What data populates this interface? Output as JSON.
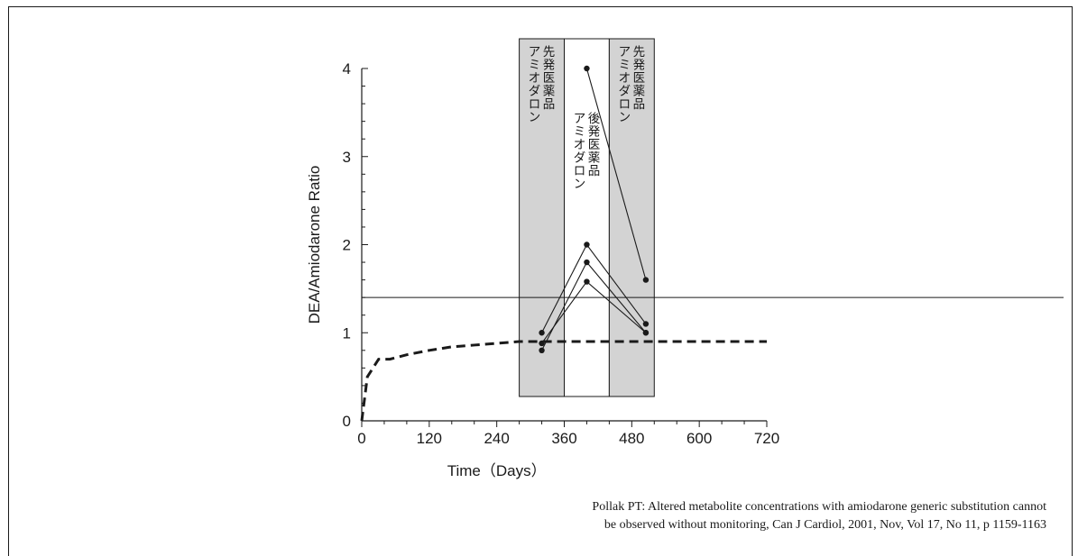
{
  "chart_data": {
    "type": "line",
    "xlabel": "Time（Days）",
    "ylabel": "DEA/Amiodarone Ratio",
    "xlim": [
      0,
      720
    ],
    "ylim": [
      0,
      4
    ],
    "x_ticks": [
      0,
      120,
      240,
      360,
      480,
      600,
      720
    ],
    "y_ticks": [
      0,
      1,
      2,
      3,
      4
    ],
    "x_tick_labels": [
      "0",
      "120",
      "240",
      "360",
      "480",
      "600",
      "720"
    ],
    "y_tick_labels": [
      "0",
      "1",
      "2",
      "3",
      "4"
    ],
    "threshold": 1.4,
    "periods": [
      {
        "x_start": 280,
        "x_end": 360,
        "label_lines": [
          "先発医薬品",
          "アミオダロン"
        ],
        "fill": "#d3d3d3"
      },
      {
        "x_start": 360,
        "x_end": 440,
        "label_lines": [
          "後発医薬品",
          "アミオダロン"
        ],
        "fill": "#ffffff"
      },
      {
        "x_start": 440,
        "x_end": 520,
        "label_lines": [
          "先発医薬品",
          "アミオダロン"
        ],
        "fill": "#d3d3d3"
      }
    ],
    "expected_curve": {
      "style": "dashed",
      "x": [
        0,
        10,
        20,
        30,
        50,
        80,
        120,
        160,
        200,
        240,
        280,
        360,
        480,
        600,
        720
      ],
      "y": [
        0,
        0.5,
        0.6,
        0.7,
        0.7,
        0.75,
        0.8,
        0.84,
        0.86,
        0.88,
        0.9,
        0.9,
        0.9,
        0.9,
        0.9
      ]
    },
    "series": [
      {
        "x": [
          400,
          505
        ],
        "y": [
          4.0,
          1.6
        ]
      },
      {
        "x": [
          320,
          400,
          505
        ],
        "y": [
          1.0,
          2.0,
          1.1
        ]
      },
      {
        "x": [
          320,
          400,
          505
        ],
        "y": [
          0.8,
          1.8,
          1.0
        ]
      },
      {
        "x": [
          320,
          400,
          505
        ],
        "y": [
          0.88,
          1.58,
          1.0
        ]
      }
    ]
  },
  "citation": {
    "line1": "Pollak PT: Altered metabolite concentrations with amiodarone generic substitution cannot",
    "line2": "be observed without monitoring, Can J Cardiol, 2001, Nov, Vol 17, No 11, p 1159-1163"
  }
}
